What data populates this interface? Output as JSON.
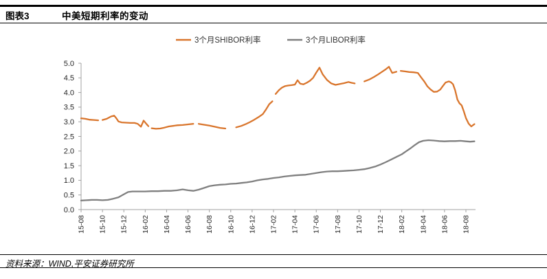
{
  "header": {
    "tag": "图表3",
    "title": "中美短期利率的变动"
  },
  "footer": {
    "source": "资料来源：WIND,平安证券研究所"
  },
  "colors": {
    "shibor_orange": "#D9752C",
    "libor_gray": "#7F7F7F",
    "axis_gray": "#A0A0A0",
    "tick_text": "#262626",
    "rule_black": "#000000"
  },
  "chart_data": {
    "type": "line",
    "title": "中美短期利率的变动",
    "xlabel": "",
    "ylabel": "",
    "grid": false,
    "legend_position": "top-center",
    "ylim": [
      0.0,
      5.0
    ],
    "y_tick_labels": [
      "0.0",
      "0.5",
      "1.0",
      "1.5",
      "2.0",
      "2.5",
      "3.0",
      "3.5",
      "4.0",
      "4.5",
      "5.0"
    ],
    "x_unit": "months since 2015-08 (label format YY-MM)",
    "x_tick_months": [
      0,
      2,
      4,
      6,
      8,
      10,
      12,
      14,
      16,
      18,
      20,
      22,
      24,
      26,
      28,
      30,
      32,
      34,
      36
    ],
    "x_tick_labels": [
      "15-08",
      "15-10",
      "15-12",
      "16-02",
      "16-04",
      "16-06",
      "16-08",
      "16-10",
      "16-12",
      "17-02",
      "17-04",
      "17-06",
      "17-08",
      "17-10",
      "17-12",
      "18-02",
      "18-04",
      "18-06",
      "18-08"
    ],
    "series": [
      {
        "name": "3个月SHIBOR利率",
        "color": "#D9752C",
        "gaps": [
          [
            1.65,
            1.95
          ],
          [
            6.33,
            6.57
          ],
          [
            10.55,
            10.8
          ],
          [
            13.85,
            14.15
          ],
          [
            17.95,
            18.18
          ],
          [
            25.95,
            26.45
          ],
          [
            29.55,
            29.8
          ]
        ],
        "points": [
          [
            0,
            3.12
          ],
          [
            0.4,
            3.1
          ],
          [
            0.8,
            3.07
          ],
          [
            1.2,
            3.06
          ],
          [
            1.6,
            3.05
          ],
          [
            2,
            3.06
          ],
          [
            2.4,
            3.1
          ],
          [
            2.8,
            3.18
          ],
          [
            3.1,
            3.21
          ],
          [
            3.3,
            3.12
          ],
          [
            3.5,
            3.01
          ],
          [
            3.8,
            2.98
          ],
          [
            4.2,
            2.97
          ],
          [
            4.6,
            2.96
          ],
          [
            5,
            2.96
          ],
          [
            5.3,
            2.93
          ],
          [
            5.6,
            2.83
          ],
          [
            5.85,
            3.04
          ],
          [
            6.1,
            2.93
          ],
          [
            6.3,
            2.85
          ],
          [
            6.6,
            2.78
          ],
          [
            7,
            2.76
          ],
          [
            7.4,
            2.77
          ],
          [
            7.8,
            2.8
          ],
          [
            8.2,
            2.84
          ],
          [
            8.6,
            2.86
          ],
          [
            9,
            2.88
          ],
          [
            9.5,
            2.89
          ],
          [
            10,
            2.91
          ],
          [
            10.5,
            2.93
          ],
          [
            11,
            2.93
          ],
          [
            11.5,
            2.9
          ],
          [
            12,
            2.87
          ],
          [
            12.5,
            2.83
          ],
          [
            13,
            2.79
          ],
          [
            13.5,
            2.77
          ],
          [
            14,
            2.79
          ],
          [
            14.5,
            2.81
          ],
          [
            15,
            2.86
          ],
          [
            15.4,
            2.92
          ],
          [
            15.8,
            2.99
          ],
          [
            16.2,
            3.07
          ],
          [
            16.6,
            3.16
          ],
          [
            17,
            3.26
          ],
          [
            17.3,
            3.42
          ],
          [
            17.6,
            3.6
          ],
          [
            17.9,
            3.7
          ],
          [
            18.2,
            3.95
          ],
          [
            18.5,
            4.08
          ],
          [
            18.8,
            4.17
          ],
          [
            19.1,
            4.22
          ],
          [
            19.4,
            4.24
          ],
          [
            19.7,
            4.25
          ],
          [
            20,
            4.27
          ],
          [
            20.25,
            4.42
          ],
          [
            20.5,
            4.3
          ],
          [
            20.8,
            4.28
          ],
          [
            21.1,
            4.33
          ],
          [
            21.4,
            4.4
          ],
          [
            21.7,
            4.5
          ],
          [
            22,
            4.68
          ],
          [
            22.3,
            4.85
          ],
          [
            22.6,
            4.62
          ],
          [
            23,
            4.43
          ],
          [
            23.4,
            4.31
          ],
          [
            23.8,
            4.26
          ],
          [
            24.2,
            4.29
          ],
          [
            24.6,
            4.32
          ],
          [
            25,
            4.36
          ],
          [
            25.3,
            4.33
          ],
          [
            25.6,
            4.31
          ],
          [
            26,
            4.33
          ],
          [
            26.5,
            4.38
          ],
          [
            27,
            4.45
          ],
          [
            27.4,
            4.53
          ],
          [
            27.8,
            4.62
          ],
          [
            28.2,
            4.72
          ],
          [
            28.5,
            4.79
          ],
          [
            28.8,
            4.88
          ],
          [
            29.1,
            4.67
          ],
          [
            29.5,
            4.71
          ],
          [
            29.9,
            4.74
          ],
          [
            30.3,
            4.72
          ],
          [
            30.7,
            4.7
          ],
          [
            31.1,
            4.69
          ],
          [
            31.5,
            4.67
          ],
          [
            31.8,
            4.52
          ],
          [
            32.1,
            4.38
          ],
          [
            32.4,
            4.21
          ],
          [
            32.7,
            4.1
          ],
          [
            33,
            4.02
          ],
          [
            33.3,
            4.03
          ],
          [
            33.6,
            4.1
          ],
          [
            33.8,
            4.2
          ],
          [
            34.1,
            4.34
          ],
          [
            34.4,
            4.38
          ],
          [
            34.6,
            4.35
          ],
          [
            34.8,
            4.28
          ],
          [
            35,
            4.07
          ],
          [
            35.2,
            3.76
          ],
          [
            35.4,
            3.63
          ],
          [
            35.6,
            3.56
          ],
          [
            35.8,
            3.36
          ],
          [
            36,
            3.13
          ],
          [
            36.25,
            2.94
          ],
          [
            36.5,
            2.84
          ],
          [
            36.8,
            2.92
          ]
        ]
      },
      {
        "name": "3个月LIBOR利率",
        "color": "#7F7F7F",
        "gaps": [],
        "points": [
          [
            0,
            0.31
          ],
          [
            0.5,
            0.32
          ],
          [
            1,
            0.33
          ],
          [
            1.5,
            0.33
          ],
          [
            2,
            0.32
          ],
          [
            2.5,
            0.33
          ],
          [
            3,
            0.37
          ],
          [
            3.5,
            0.42
          ],
          [
            4,
            0.52
          ],
          [
            4.4,
            0.6
          ],
          [
            4.8,
            0.62
          ],
          [
            5.4,
            0.62
          ],
          [
            6,
            0.62
          ],
          [
            6.6,
            0.63
          ],
          [
            7.2,
            0.63
          ],
          [
            7.8,
            0.64
          ],
          [
            8.4,
            0.64
          ],
          [
            9,
            0.66
          ],
          [
            9.5,
            0.69
          ],
          [
            10,
            0.66
          ],
          [
            10.5,
            0.64
          ],
          [
            11,
            0.68
          ],
          [
            11.5,
            0.74
          ],
          [
            12,
            0.8
          ],
          [
            12.5,
            0.83
          ],
          [
            13,
            0.85
          ],
          [
            13.5,
            0.86
          ],
          [
            14,
            0.88
          ],
          [
            14.5,
            0.89
          ],
          [
            15,
            0.91
          ],
          [
            15.5,
            0.93
          ],
          [
            16,
            0.96
          ],
          [
            16.5,
            1.0
          ],
          [
            17,
            1.03
          ],
          [
            17.5,
            1.05
          ],
          [
            18,
            1.08
          ],
          [
            18.5,
            1.1
          ],
          [
            19,
            1.13
          ],
          [
            19.5,
            1.15
          ],
          [
            20,
            1.17
          ],
          [
            20.5,
            1.18
          ],
          [
            21,
            1.19
          ],
          [
            21.5,
            1.22
          ],
          [
            22,
            1.25
          ],
          [
            22.5,
            1.28
          ],
          [
            23,
            1.3
          ],
          [
            23.5,
            1.31
          ],
          [
            24,
            1.31
          ],
          [
            24.5,
            1.32
          ],
          [
            25,
            1.33
          ],
          [
            25.5,
            1.34
          ],
          [
            26,
            1.36
          ],
          [
            26.5,
            1.38
          ],
          [
            27,
            1.42
          ],
          [
            27.5,
            1.47
          ],
          [
            28,
            1.54
          ],
          [
            28.5,
            1.62
          ],
          [
            29,
            1.71
          ],
          [
            29.5,
            1.8
          ],
          [
            30,
            1.89
          ],
          [
            30.4,
            1.99
          ],
          [
            30.8,
            2.09
          ],
          [
            31.2,
            2.2
          ],
          [
            31.6,
            2.3
          ],
          [
            32,
            2.35
          ],
          [
            32.5,
            2.37
          ],
          [
            33,
            2.36
          ],
          [
            33.5,
            2.34
          ],
          [
            34,
            2.33
          ],
          [
            34.5,
            2.34
          ],
          [
            35,
            2.34
          ],
          [
            35.5,
            2.35
          ],
          [
            36,
            2.33
          ],
          [
            36.4,
            2.32
          ],
          [
            36.8,
            2.33
          ]
        ]
      }
    ]
  }
}
